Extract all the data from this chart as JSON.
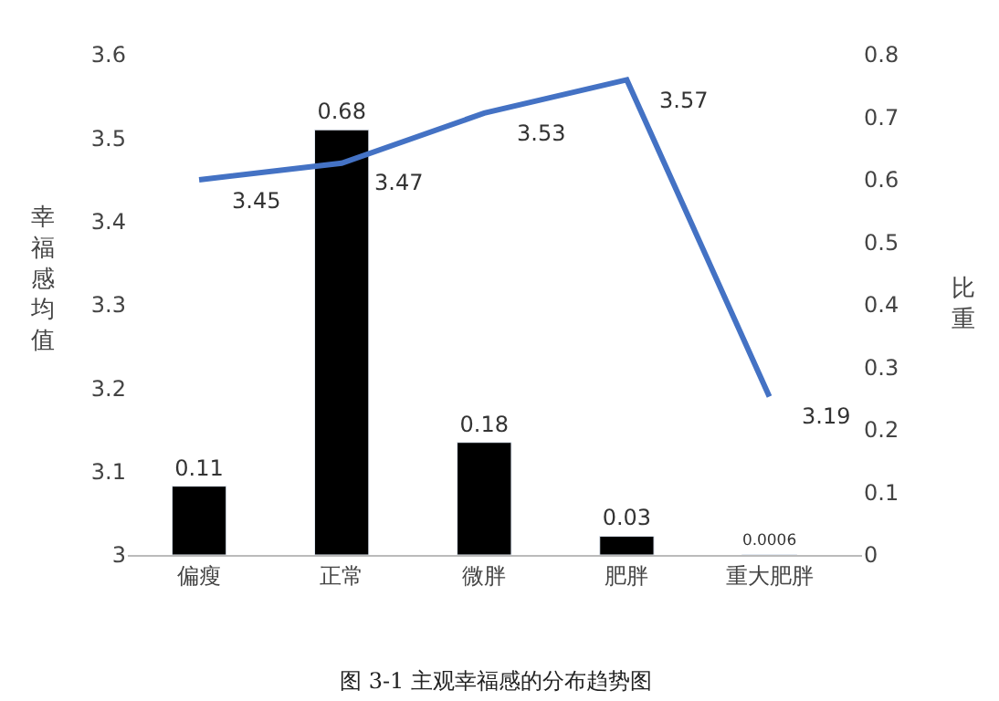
{
  "chart_data": {
    "type": "bar",
    "categories": [
      "偏瘦",
      "正常",
      "微胖",
      "肥胖",
      "重大肥胖"
    ],
    "series": [
      {
        "axis": "y2",
        "color": "#000000",
        "values": [
          0.11,
          0.68,
          0.18,
          0.03,
          0.0006
        ],
        "value_labels": [
          "0.11",
          "0.68",
          "0.18",
          "0.03",
          "0.0006"
        ]
      },
      {
        "type": "line",
        "color": "#4472c4",
        "values": [
          3.45,
          3.47,
          3.53,
          3.57,
          3.19
        ],
        "value_labels": [
          "3.45",
          "3.47",
          "3.53",
          "3.57",
          "3.19"
        ]
      }
    ],
    "ylabel": "幸福感均值",
    "y2label": "比重",
    "ylim": [
      3,
      3.6
    ],
    "yticks": [
      3,
      3.1,
      3.2,
      3.3,
      3.4,
      3.5,
      3.6
    ],
    "y2lim": [
      0,
      0.8
    ],
    "y2ticks": [
      0,
      0.1,
      0.2,
      0.3,
      0.4,
      0.5,
      0.6,
      0.7,
      0.8
    ],
    "legend": false,
    "marker": "none",
    "line_style": "solid",
    "annotations": [
      "图 3-1 主观幸福感的分布趋势图"
    ]
  }
}
